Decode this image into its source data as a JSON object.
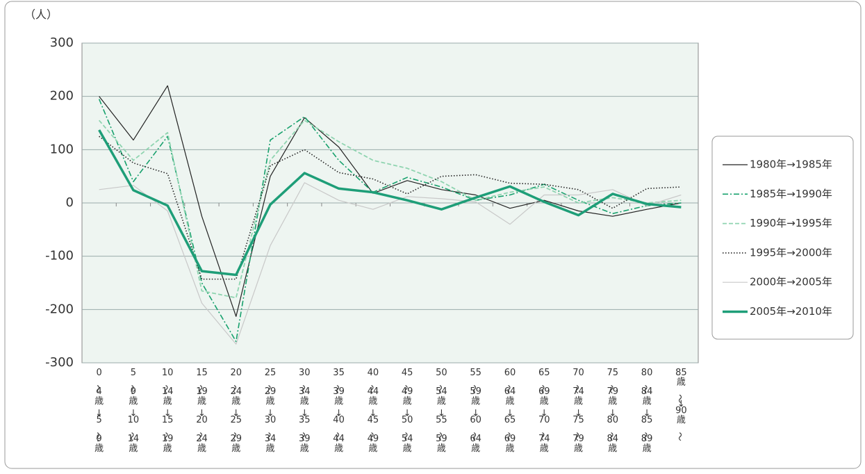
{
  "chart_data": {
    "type": "line",
    "unit_label": "（人）",
    "categories": [
      "0〜4歳↓5〜9歳",
      "5〜9歳↓10〜14歳",
      "10〜14歳↓15〜19歳",
      "15〜19歳↓20〜24歳",
      "20〜24歳↓25〜29歳",
      "25〜29歳↓30〜34歳",
      "30〜34歳↓35〜39歳",
      "35〜39歳↓40〜44歳",
      "40〜44歳↓45〜49歳",
      "45〜49歳↓50〜54歳",
      "50〜54歳↓55〜59歳",
      "55〜59歳↓60〜64歳",
      "60〜64歳↓65〜69歳",
      "65〜69歳↓70〜74歳",
      "70〜74歳↓75〜79歳",
      "75〜79歳↓80〜84歳",
      "80〜84歳↓85〜89歳",
      "85歳〜↓90歳〜"
    ],
    "ylim": [
      -300,
      300
    ],
    "yticks": [
      -300,
      -200,
      -100,
      0,
      100,
      200,
      300
    ],
    "grid": true,
    "legend": "right",
    "series": [
      {
        "name": "1980年→1985年",
        "color": "#222222",
        "style": "solid",
        "values": [
          200,
          118,
          220,
          -25,
          -213,
          50,
          160,
          105,
          18,
          42,
          25,
          15,
          -10,
          5,
          -15,
          -25,
          -12,
          0
        ]
      },
      {
        "name": "1985年→1990年",
        "color": "#16a06c",
        "style": "dash-dot",
        "values": [
          195,
          40,
          125,
          -150,
          -260,
          118,
          162,
          80,
          20,
          48,
          30,
          5,
          15,
          35,
          5,
          -20,
          -5,
          0
        ]
      },
      {
        "name": "1990年→1995年",
        "color": "#8fd4b0",
        "style": "dashed",
        "values": [
          155,
          80,
          132,
          -165,
          -178,
          80,
          155,
          115,
          80,
          65,
          40,
          5,
          20,
          30,
          0,
          10,
          0,
          5
        ]
      },
      {
        "name": "1995年→2000年",
        "color": "#222222",
        "style": "dotted",
        "values": [
          125,
          75,
          55,
          -143,
          -143,
          70,
          100,
          57,
          45,
          17,
          50,
          53,
          37,
          35,
          25,
          -10,
          27,
          30
        ]
      },
      {
        "name": "2000年→2005年",
        "color": "#c8c8c8",
        "style": "solid",
        "values": [
          25,
          33,
          -15,
          -188,
          -265,
          -80,
          38,
          5,
          -12,
          12,
          8,
          2,
          -40,
          15,
          15,
          25,
          -5,
          15
        ]
      },
      {
        "name": "2005年→2010年",
        "color": "#1e9e78",
        "style": "thick",
        "values": [
          137,
          24,
          -5,
          -128,
          -135,
          -3,
          56,
          27,
          20,
          5,
          -12,
          10,
          31,
          2,
          -23,
          17,
          -2,
          -8
        ]
      }
    ]
  }
}
